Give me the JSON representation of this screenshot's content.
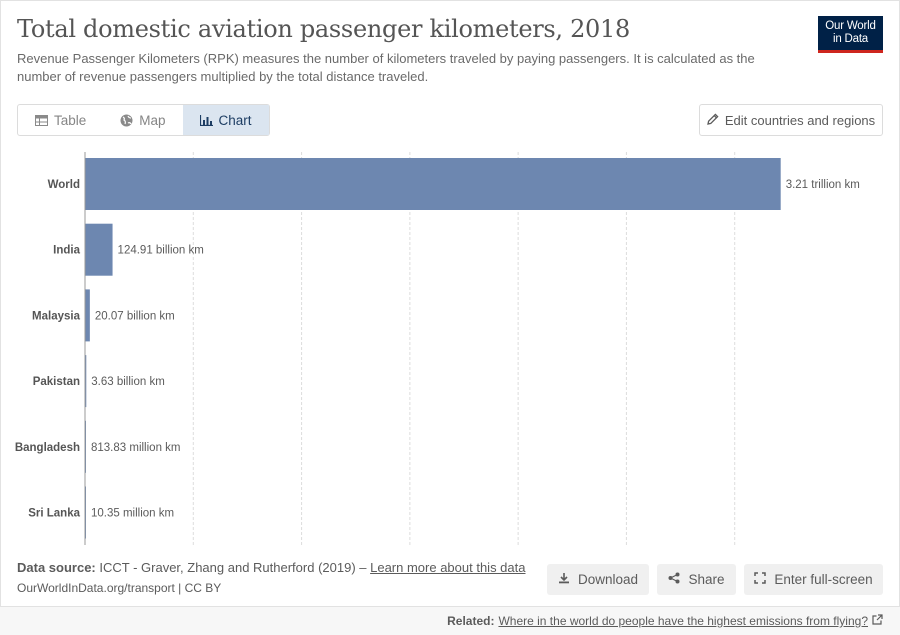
{
  "header": {
    "title": "Total domestic aviation passenger kilometers, 2018",
    "subtitle": "Revenue Passenger Kilometers (RPK) measures the number of kilometers traveled by paying passengers. It is calculated as the number of revenue passengers multiplied by the total distance traveled.",
    "logo_line1": "Our World",
    "logo_line2": "in Data"
  },
  "tabs": [
    {
      "label": "Table",
      "icon": "table-icon"
    },
    {
      "label": "Map",
      "icon": "globe-icon"
    },
    {
      "label": "Chart",
      "icon": "chart-icon"
    }
  ],
  "edit_button": {
    "label": "Edit countries and regions",
    "icon": "pencil-icon"
  },
  "chart_data": {
    "type": "bar",
    "orientation": "horizontal",
    "title": "Total domestic aviation passenger kilometers, 2018",
    "unit": "km",
    "categories": [
      "World",
      "India",
      "Malaysia",
      "Pakistan",
      "Bangladesh",
      "Sri Lanka"
    ],
    "values": [
      3210000000000,
      124910000000,
      20070000000,
      3630000000,
      813830000,
      10350000
    ],
    "value_labels": [
      "3.21 trillion km",
      "124.91 billion km",
      "20.07 billion km",
      "3.63 billion km",
      "813.83 million km",
      "10.35 million km"
    ],
    "xlim": [
      0,
      3500000000000
    ],
    "gridlines": [
      0,
      500000000000,
      1000000000000,
      1500000000000,
      2000000000000,
      2500000000000,
      3000000000000
    ],
    "bar_color": "#6d87b0",
    "grid": true
  },
  "footer": {
    "source_label": "Data source:",
    "source_text": "ICCT - Graver, Zhang and Rutherford (2019) – ",
    "learn_more": "Learn more about this data",
    "url": "OurWorldInData.org/transport | CC BY",
    "download_label": "Download",
    "share_label": "Share",
    "fullscreen_label": "Enter full-screen"
  },
  "related": {
    "label": "Related:",
    "link": "Where in the world do people have the highest emissions from flying?"
  }
}
